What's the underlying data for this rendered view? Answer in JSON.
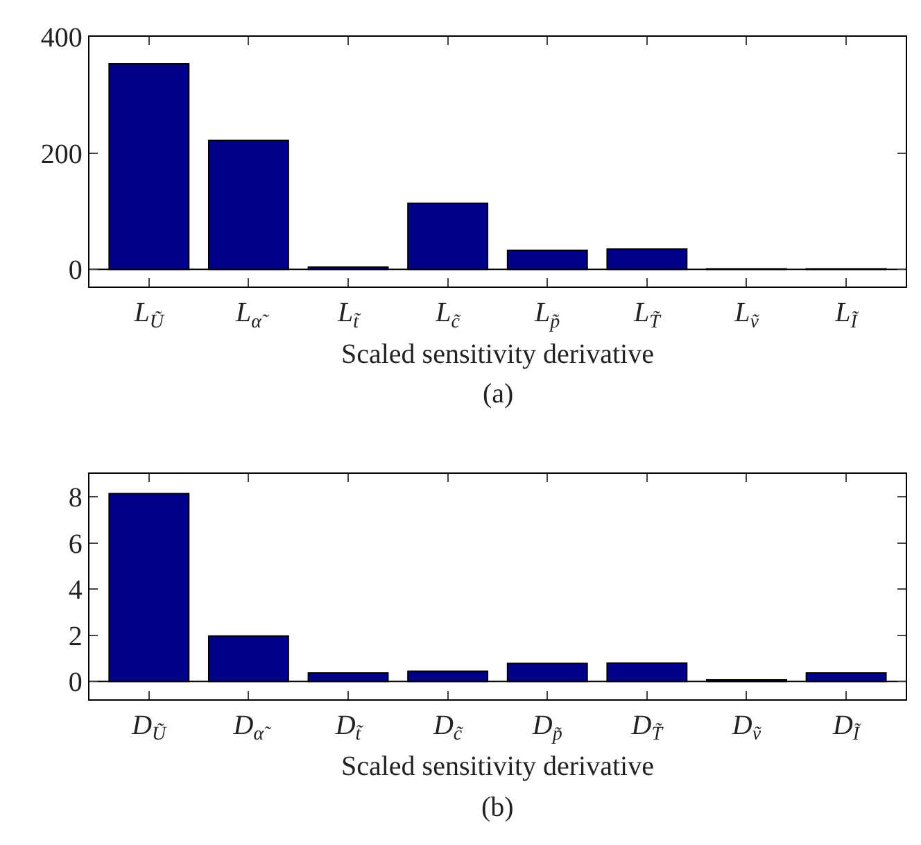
{
  "chart_data": [
    {
      "type": "bar",
      "categories": [
        "L$_{Ũ}$",
        "L$_{α̃}$",
        "L$_{t̃}$",
        "L$_{c̃}$",
        "L$_{p̃}$",
        "L$_{T̃}$",
        "L$_{ṽ}$",
        "L$_{Ĩ}$"
      ],
      "series": [
        {
          "color": "#00008b",
          "values": [
            354,
            222,
            4,
            114,
            33,
            35,
            1,
            1
          ]
        }
      ],
      "xlabel": "Scaled sensitivity derivative",
      "ylim": [
        -30,
        400
      ],
      "yticks": [
        0,
        200,
        400
      ],
      "ref_lines": [
        {
          "axis": "y",
          "value": 0,
          "color": "#000000"
        }
      ],
      "annotations": [
        "(a)"
      ]
    },
    {
      "type": "bar",
      "categories": [
        "D$_{Ũ}$",
        "D$_{α̃}$",
        "D$_{t̃}$",
        "D$_{c̃}$",
        "D$_{p̃}$",
        "D$_{T̃}$",
        "D$_{ṽ}$",
        "D$_{Ĩ}$"
      ],
      "series": [
        {
          "color": "#00008b",
          "values": [
            8.14,
            1.97,
            0.37,
            0.44,
            0.78,
            0.8,
            0.07,
            0.37
          ]
        }
      ],
      "xlabel": "Scaled sensitivity derivative",
      "ylim": [
        -0.76,
        9.0
      ],
      "yticks": [
        0,
        2,
        4,
        6,
        8
      ],
      "ref_lines": [
        {
          "axis": "y",
          "value": 0,
          "color": "#000000"
        }
      ],
      "annotations": [
        "(b)"
      ]
    }
  ]
}
